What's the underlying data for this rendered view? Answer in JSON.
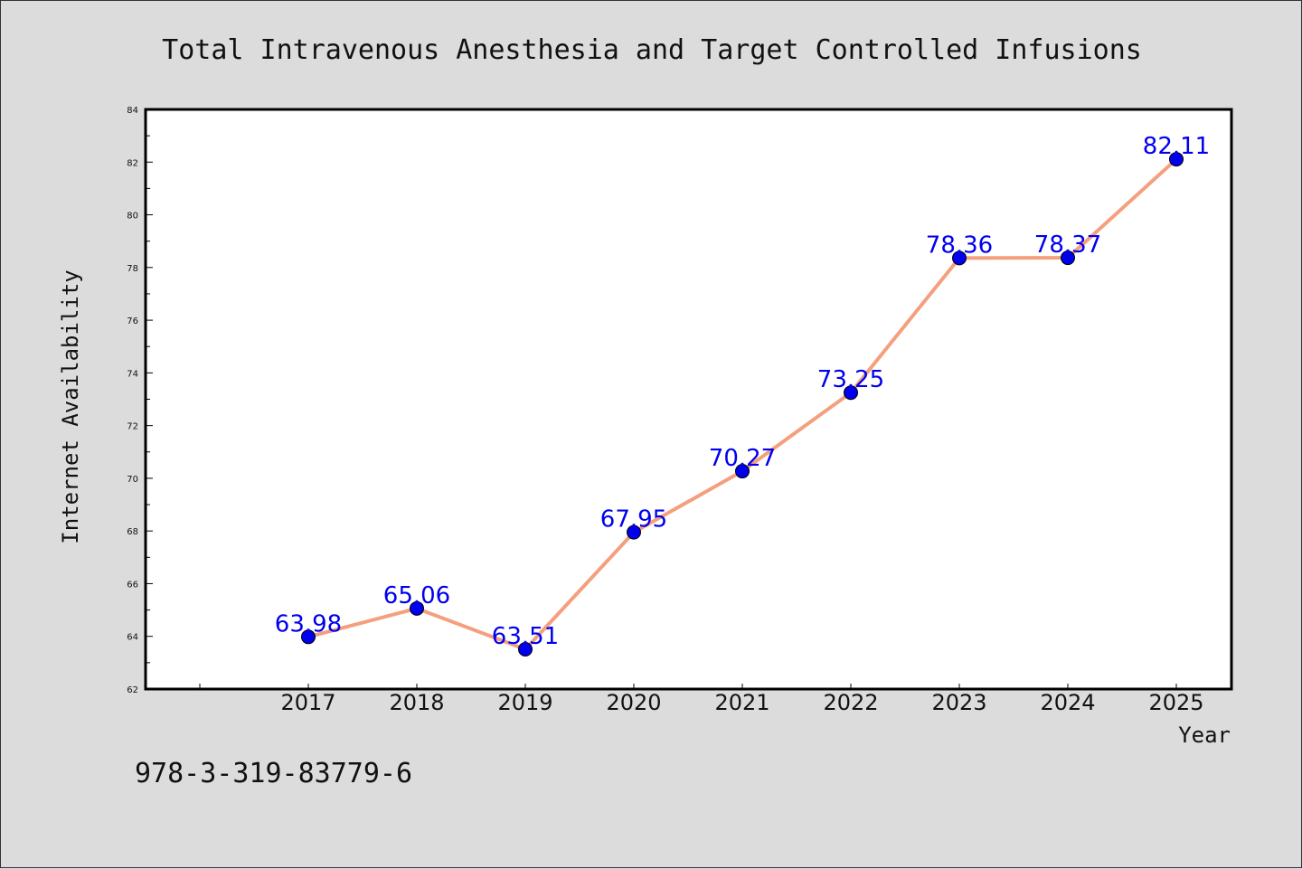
{
  "chart_data": {
    "type": "line",
    "title": "Total Intravenous Anesthesia and Target Controlled Infusions",
    "xlabel": "Year",
    "ylabel": "Internet Availability",
    "categories": [
      "2017",
      "2018",
      "2019",
      "2020",
      "2021",
      "2022",
      "2023",
      "2024",
      "2025"
    ],
    "series": [
      {
        "values": [
          63.98,
          65.06,
          63.51,
          67.95,
          70.27,
          73.25,
          78.36,
          78.37,
          82.11
        ],
        "labels": [
          "63.98",
          "65.06",
          "63.51",
          "67.95",
          "70.27",
          "73.25",
          "78.36",
          "78.37",
          "82.11"
        ],
        "line_color": "#f4a07e",
        "marker_color": "#0000ee"
      }
    ],
    "ylim": [
      62,
      84
    ],
    "yticks": [
      "62",
      "64",
      "66",
      "68",
      "70",
      "72",
      "74",
      "76",
      "78",
      "80",
      "82",
      "84"
    ],
    "grid": false,
    "legend": "none"
  },
  "footnote": "978-3-319-83779-6"
}
